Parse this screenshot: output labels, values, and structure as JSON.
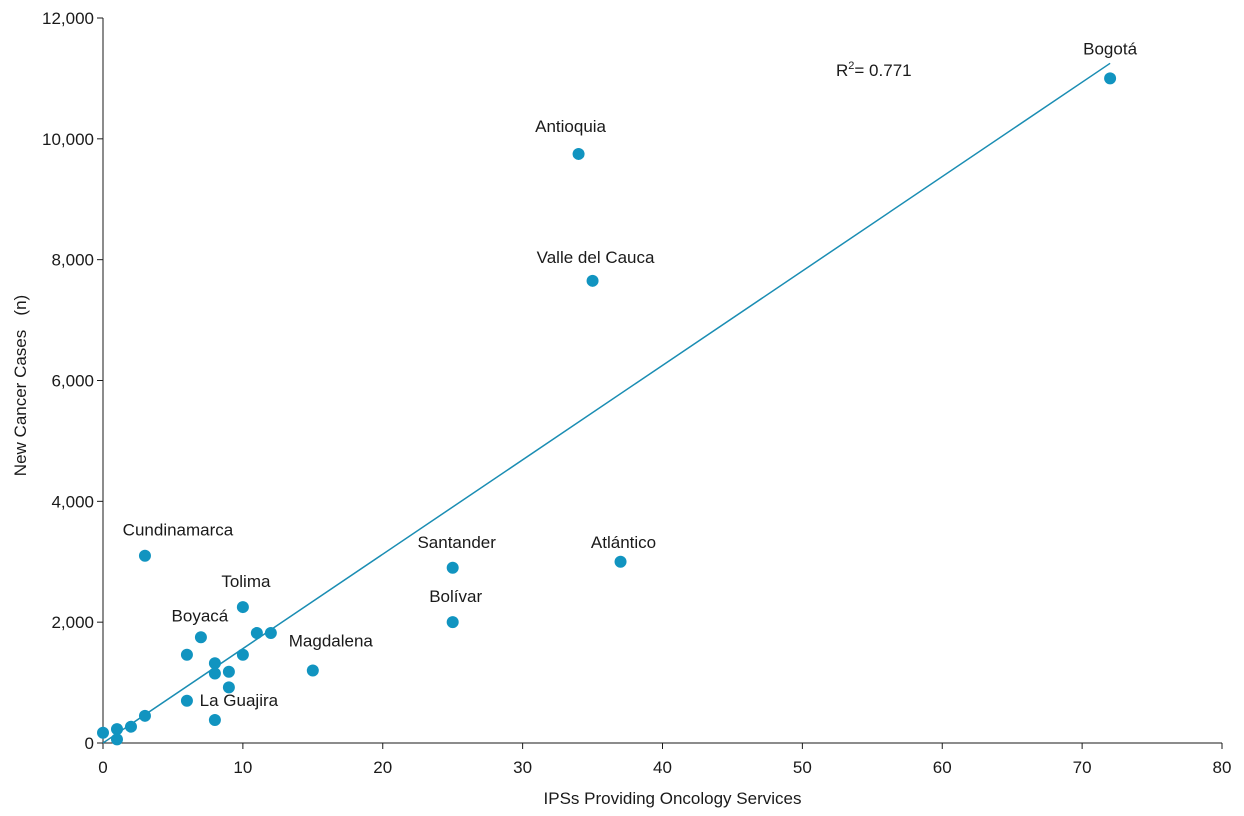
{
  "chart_data": {
    "type": "scatter",
    "xlabel": "IPSs Providing Oncology Services",
    "ylabel": "New Cancer Cases   (n)",
    "xlim": [
      0,
      80
    ],
    "ylim": [
      0,
      12000
    ],
    "x_ticks": [
      0,
      10,
      20,
      30,
      40,
      50,
      60,
      70,
      80
    ],
    "y_ticks": [
      0,
      2000,
      4000,
      6000,
      8000,
      10000,
      12000
    ],
    "x_tick_labels": [
      "0",
      "10",
      "20",
      "30",
      "40",
      "50",
      "60",
      "70",
      "80"
    ],
    "y_tick_labels": [
      "0",
      "2,000",
      "4,000",
      "6,000",
      "8,000",
      "10,000",
      "12,000"
    ],
    "grid": false,
    "point_color": "#1194c0",
    "trendline_color": "#1a8db3",
    "r2_label": {
      "prefix": "R",
      "superscript": "2",
      "text": "= 0.771"
    },
    "trendline": {
      "x": [
        0,
        72
      ],
      "y": [
        0,
        11250
      ]
    },
    "points": [
      {
        "x": 72,
        "y": 11000,
        "label": "Bogotá"
      },
      {
        "x": 34,
        "y": 9750,
        "label": "Antioquia"
      },
      {
        "x": 35,
        "y": 7650,
        "label": "Valle del Cauca"
      },
      {
        "x": 37,
        "y": 3000,
        "label": "Atlántico"
      },
      {
        "x": 25,
        "y": 2900,
        "label": "Santander"
      },
      {
        "x": 25,
        "y": 2000,
        "label": "Bolívar"
      },
      {
        "x": 3,
        "y": 3100,
        "label": "Cundinamarca"
      },
      {
        "x": 10,
        "y": 2250,
        "label": "Tolima"
      },
      {
        "x": 7,
        "y": 1750,
        "label": "Boyacá"
      },
      {
        "x": 15,
        "y": 1200,
        "label": "Magdalena"
      },
      {
        "x": 8,
        "y": 380,
        "label": "La Guajira"
      },
      {
        "x": 11,
        "y": 1820,
        "label": ""
      },
      {
        "x": 12,
        "y": 1820,
        "label": ""
      },
      {
        "x": 6,
        "y": 1460,
        "label": ""
      },
      {
        "x": 10,
        "y": 1460,
        "label": ""
      },
      {
        "x": 8,
        "y": 1320,
        "label": ""
      },
      {
        "x": 9,
        "y": 1180,
        "label": ""
      },
      {
        "x": 8,
        "y": 1150,
        "label": ""
      },
      {
        "x": 9,
        "y": 920,
        "label": ""
      },
      {
        "x": 6,
        "y": 700,
        "label": ""
      },
      {
        "x": 3,
        "y": 450,
        "label": ""
      },
      {
        "x": 2,
        "y": 270,
        "label": ""
      },
      {
        "x": 1,
        "y": 230,
        "label": ""
      },
      {
        "x": 0,
        "y": 170,
        "label": ""
      },
      {
        "x": 1,
        "y": 60,
        "label": ""
      }
    ]
  }
}
